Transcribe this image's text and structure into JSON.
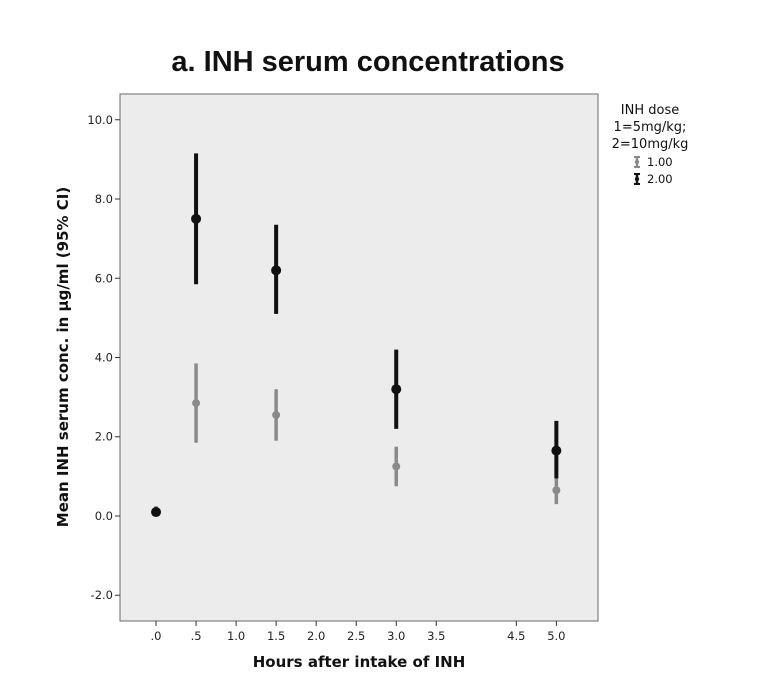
{
  "chart_data": {
    "type": "scatter",
    "title": "a. INH serum concentrations",
    "xlabel": "Hours after intake of INH",
    "ylabel": "Mean INH serum conc. in µg/ml (95% CI)",
    "xlim": [
      -0.45,
      5.52
    ],
    "ylim": [
      -2.65,
      10.65
    ],
    "x_ticks": [
      0,
      0.5,
      1.0,
      1.5,
      2.0,
      2.5,
      3.0,
      3.5,
      4.5,
      5.0
    ],
    "x_tick_labels": [
      ".0",
      ".5",
      "1.0",
      "1.5",
      "2.0",
      "2.5",
      "3.0",
      "3.5",
      "4.5",
      "5.0"
    ],
    "y_ticks": [
      -2,
      0,
      2,
      4,
      6,
      8,
      10
    ],
    "y_tick_labels": [
      "-2.0",
      "0.0",
      "2.0",
      "4.0",
      "6.0",
      "8.0",
      "10.0"
    ],
    "grid": false,
    "legend": {
      "title_lines": [
        "INH dose",
        "1=5mg/kg;",
        "2=10mg/kg"
      ],
      "placement": "top-right, outside plot area"
    },
    "colors": {
      "plot_background": "#ececec",
      "series_1": "#8a8a8a",
      "series_2": "#111111"
    },
    "series": [
      {
        "name": "1.00",
        "points": [
          {
            "x": 0.0,
            "mean": 0.1,
            "lower": 0.0,
            "upper": 0.25
          },
          {
            "x": 0.5,
            "mean": 2.85,
            "lower": 1.85,
            "upper": 3.85
          },
          {
            "x": 1.5,
            "mean": 2.55,
            "lower": 1.9,
            "upper": 3.2
          },
          {
            "x": 3.0,
            "mean": 1.25,
            "lower": 0.75,
            "upper": 1.75
          },
          {
            "x": 5.0,
            "mean": 0.65,
            "lower": 0.3,
            "upper": 1.0
          }
        ]
      },
      {
        "name": "2.00",
        "points": [
          {
            "x": 0.0,
            "mean": 0.1,
            "lower": 0.05,
            "upper": 0.15
          },
          {
            "x": 0.5,
            "mean": 7.5,
            "lower": 5.85,
            "upper": 9.15
          },
          {
            "x": 1.5,
            "mean": 6.2,
            "lower": 5.1,
            "upper": 7.35
          },
          {
            "x": 3.0,
            "mean": 3.2,
            "lower": 2.2,
            "upper": 4.2
          },
          {
            "x": 5.0,
            "mean": 1.65,
            "lower": 0.95,
            "upper": 2.4
          }
        ]
      }
    ]
  }
}
